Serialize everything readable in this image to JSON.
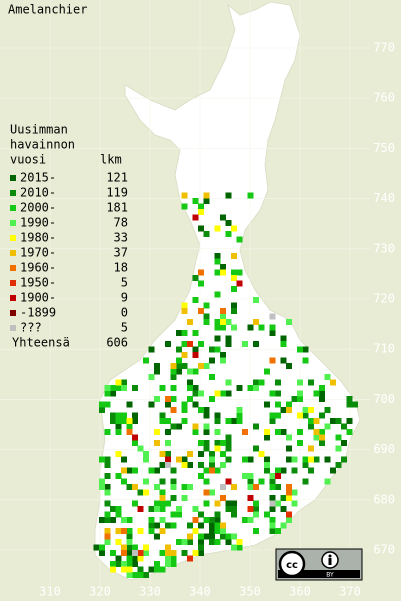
{
  "title": "Amelanchier",
  "legend": {
    "header": [
      "Uusimman",
      "havainnon",
      "vuosi"
    ],
    "count_header": "lkm",
    "rows": [
      {
        "label": "2015-",
        "count": 121,
        "color": "#006400"
      },
      {
        "label": "2010-",
        "count": 119,
        "color": "#0a8c0a"
      },
      {
        "label": "2000-",
        "count": 181,
        "color": "#14c814"
      },
      {
        "label": "1990-",
        "count": 78,
        "color": "#50f050"
      },
      {
        "label": "1980-",
        "count": 33,
        "color": "#ffff00"
      },
      {
        "label": "1970-",
        "count": 37,
        "color": "#f0c000"
      },
      {
        "label": "1960-",
        "count": 18,
        "color": "#f07000"
      },
      {
        "label": "1950-",
        "count": 5,
        "color": "#e03000"
      },
      {
        "label": "1900-",
        "count": 9,
        "color": "#c00000"
      },
      {
        "label": "-1899",
        "count": 0,
        "color": "#800000"
      },
      {
        "label": "???",
        "count": 5,
        "color": "#c0c0c0"
      }
    ],
    "total_label": "Yhteensä",
    "total": 606
  },
  "map": {
    "xticks": [
      310,
      320,
      330,
      340,
      350,
      360,
      370
    ],
    "yticks": [
      670,
      680,
      690,
      700,
      710,
      720,
      730,
      740,
      750,
      760,
      770
    ]
  }
}
